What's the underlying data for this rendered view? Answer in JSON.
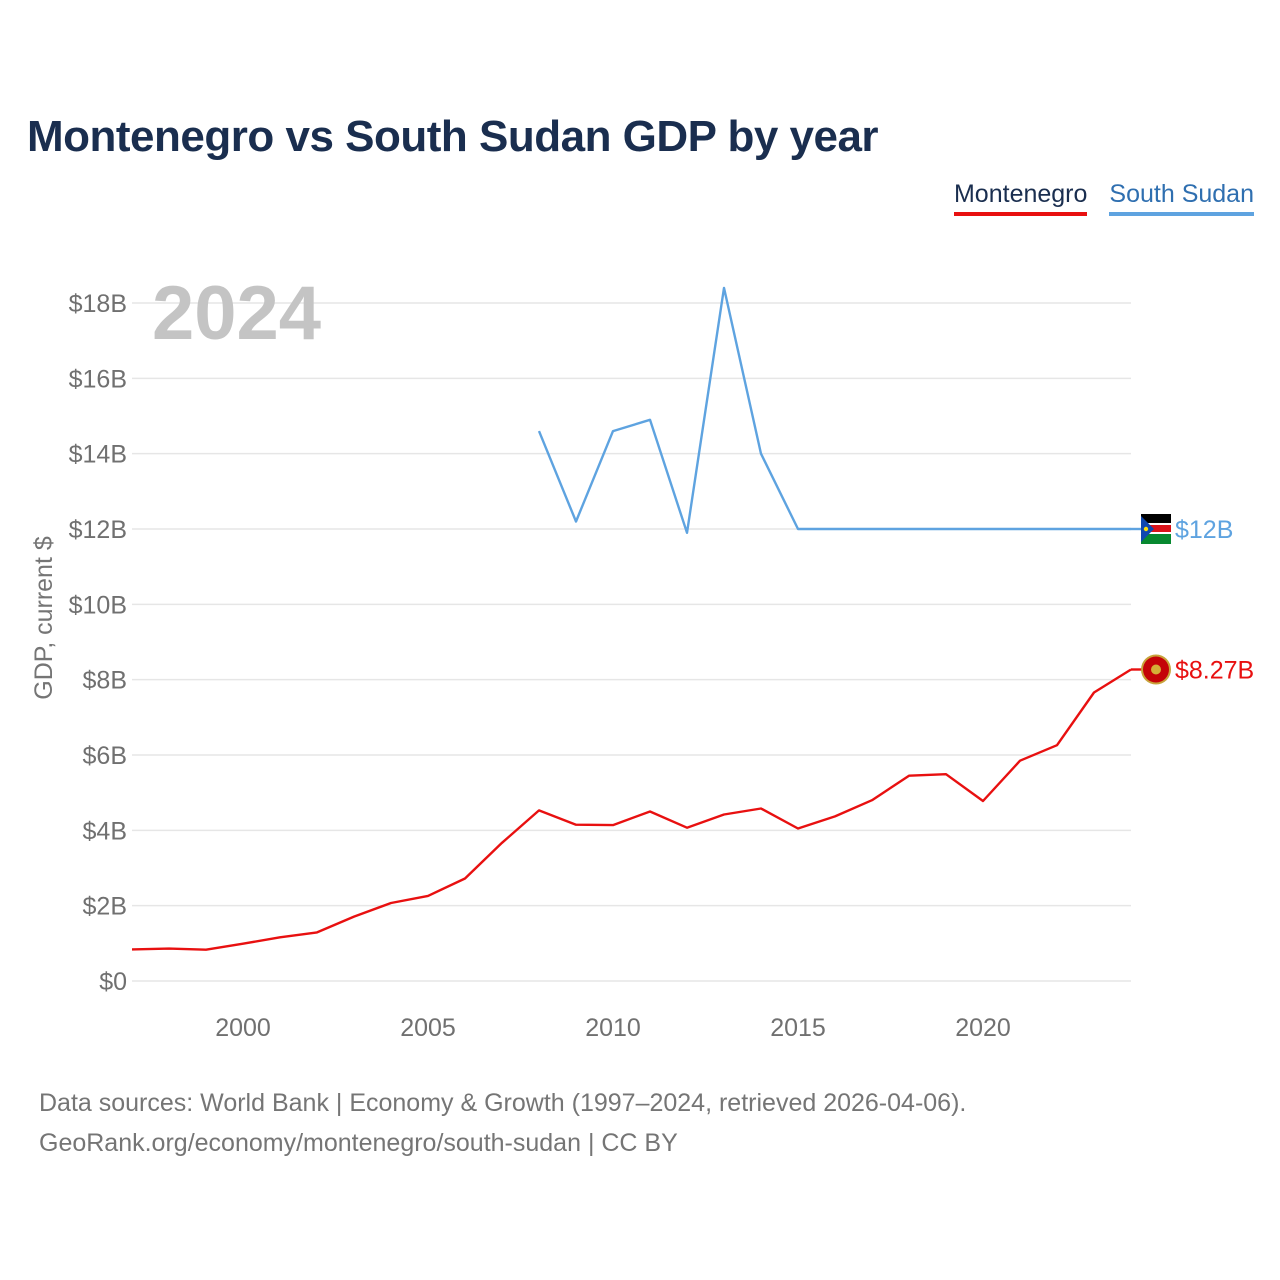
{
  "title": "Montenegro vs South Sudan GDP by year",
  "legend": [
    {
      "name": "Montenegro",
      "color": "#e81010"
    },
    {
      "name": "South Sudan",
      "color": "#5ea3e0"
    }
  ],
  "year_display": "2024",
  "source": {
    "line1": "Data sources: World Bank | Economy & Growth (1997–2024, retrieved 2026-04-06).",
    "line2": "GeoRank.org/economy/montenegro/south-sudan | CC BY"
  },
  "chart_data": {
    "type": "line",
    "title": "Montenegro vs South Sudan GDP by year",
    "xlabel": "",
    "ylabel": "GDP, current $",
    "xlim": [
      1997,
      2024
    ],
    "ylim": [
      0,
      18
    ],
    "x_ticks": [
      2000,
      2005,
      2010,
      2015,
      2020
    ],
    "y_ticks": [
      0,
      2,
      4,
      6,
      8,
      10,
      12,
      14,
      16,
      18
    ],
    "y_tick_labels": [
      "$0",
      "$2B",
      "$4B",
      "$6B",
      "$8B",
      "$10B",
      "$12B",
      "$14B",
      "$16B",
      "$18B"
    ],
    "grid": true,
    "legend_position": "top-right",
    "series": [
      {
        "name": "Montenegro",
        "color": "#e81010",
        "end_label": "$8.27B",
        "x": [
          1997,
          1998,
          1999,
          2000,
          2001,
          2002,
          2003,
          2004,
          2005,
          2006,
          2007,
          2008,
          2009,
          2010,
          2011,
          2012,
          2013,
          2014,
          2015,
          2016,
          2017,
          2018,
          2019,
          2020,
          2021,
          2022,
          2023,
          2024
        ],
        "values": [
          0.84,
          0.86,
          0.83,
          0.99,
          1.16,
          1.29,
          1.71,
          2.07,
          2.26,
          2.72,
          3.67,
          4.53,
          4.15,
          4.14,
          4.5,
          4.07,
          4.42,
          4.58,
          4.05,
          4.37,
          4.8,
          5.45,
          5.49,
          4.78,
          5.85,
          6.26,
          7.66,
          8.27
        ]
      },
      {
        "name": "South Sudan",
        "color": "#5ea3e0",
        "end_label": "$12B",
        "x": [
          2008,
          2009,
          2010,
          2011,
          2012,
          2013,
          2014,
          2015,
          2016,
          2017,
          2018,
          2019,
          2020,
          2021,
          2022,
          2023,
          2024
        ],
        "values": [
          14.6,
          12.2,
          14.6,
          14.9,
          11.9,
          18.4,
          14.0,
          12.0,
          12.0,
          12.0,
          12.0,
          12.0,
          12.0,
          12.0,
          12.0,
          12.0,
          12.0
        ]
      }
    ]
  }
}
